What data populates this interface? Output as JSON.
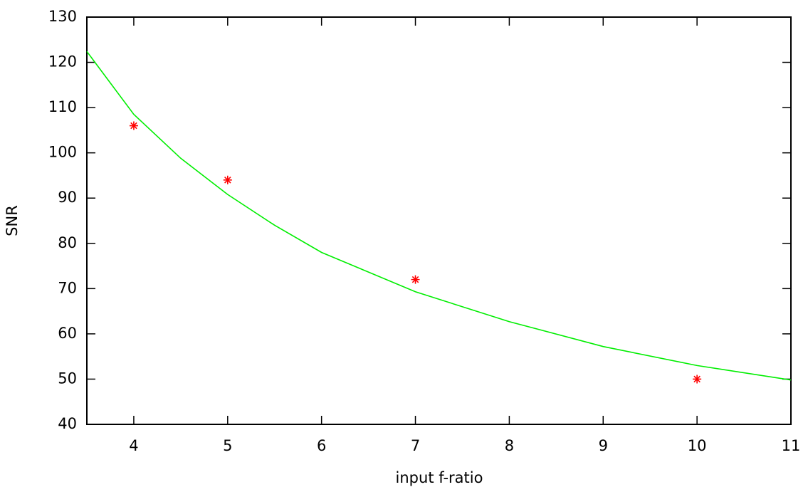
{
  "chart_data": {
    "type": "scatter",
    "xlabel": "input f-ratio",
    "ylabel": "SNR",
    "xlim": [
      3.5,
      11
    ],
    "xticks": [
      4,
      5,
      6,
      7,
      8,
      9,
      10,
      11
    ],
    "ylim": [
      40,
      130
    ],
    "yticks": [
      40,
      50,
      60,
      70,
      80,
      90,
      100,
      110,
      120,
      130
    ],
    "series": [
      {
        "type": "scatter",
        "color": "#ff0000",
        "x": [
          4,
          5,
          7,
          10
        ],
        "values": [
          106,
          94,
          72,
          50
        ]
      },
      {
        "type": "line",
        "color": "#00ee00",
        "x": [
          3.5,
          4,
          4.5,
          5,
          5.5,
          6,
          7,
          8,
          9,
          10,
          11
        ],
        "values": [
          122.4,
          108.5,
          98.8,
          90.8,
          84.0,
          78.0,
          69.3,
          62.7,
          57.2,
          53.0,
          49.8
        ]
      }
    ]
  }
}
